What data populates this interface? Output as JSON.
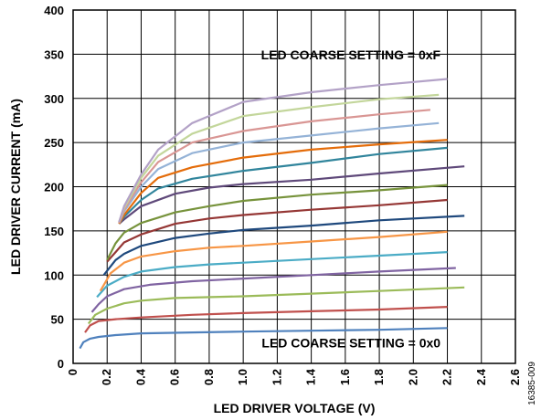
{
  "figure_id": "16385-009",
  "chart_data": {
    "type": "line",
    "title": "",
    "xlabel": "LED DRIVER VOLTAGE (V)",
    "ylabel": "LED DRIVER CURRENT (mA)",
    "xlim": [
      0,
      2.6
    ],
    "ylim": [
      0,
      400
    ],
    "xticks": [
      "0",
      "0.2",
      "0.4",
      "0.6",
      "0.8",
      "1.0",
      "1.2",
      "1.4",
      "1.6",
      "1.8",
      "2.0",
      "2.2",
      "2.4",
      "2.6"
    ],
    "yticks": [
      "0",
      "50",
      "100",
      "150",
      "200",
      "250",
      "300",
      "350",
      "400"
    ],
    "grid": true,
    "annotations": [
      {
        "text": "LED COARSE SETTING = 0xF",
        "x": 2.16,
        "y": 344
      },
      {
        "text": "LED COARSE SETTING = 0x0",
        "x": 2.16,
        "y": 18
      }
    ],
    "series": [
      {
        "color": "#4f81bd",
        "x": [
          0.04,
          0.06,
          0.1,
          0.15,
          0.25,
          0.4,
          0.7,
          1.0,
          1.4,
          1.8,
          2.2
        ],
        "y": [
          17,
          24,
          28,
          30,
          32,
          34,
          35,
          36,
          37,
          38,
          40
        ]
      },
      {
        "color": "#c0504d",
        "x": [
          0.07,
          0.1,
          0.15,
          0.25,
          0.4,
          0.7,
          1.0,
          1.4,
          1.8,
          2.2
        ],
        "y": [
          35,
          43,
          48,
          50,
          52,
          55,
          57,
          59,
          61,
          64
        ]
      },
      {
        "color": "#9bbb59",
        "x": [
          0.09,
          0.13,
          0.2,
          0.3,
          0.4,
          0.6,
          1.0,
          1.4,
          1.8,
          2.3
        ],
        "y": [
          45,
          55,
          62,
          68,
          71,
          74,
          76,
          79,
          82,
          86
        ]
      },
      {
        "color": "#8064a2",
        "x": [
          0.11,
          0.15,
          0.2,
          0.3,
          0.45,
          0.7,
          1.0,
          1.4,
          1.8,
          2.25
        ],
        "y": [
          58,
          67,
          76,
          84,
          89,
          93,
          96,
          100,
          104,
          108
        ]
      },
      {
        "color": "#4bacc6",
        "x": [
          0.14,
          0.2,
          0.3,
          0.4,
          0.6,
          0.8,
          1.0,
          1.4,
          1.8,
          2.2
        ],
        "y": [
          75,
          88,
          98,
          104,
          109,
          112,
          114,
          118,
          122,
          126
        ]
      },
      {
        "color": "#f79646",
        "x": [
          0.16,
          0.22,
          0.3,
          0.4,
          0.6,
          0.8,
          1.0,
          1.4,
          1.8,
          2.2
        ],
        "y": [
          82,
          102,
          114,
          121,
          127,
          131,
          133,
          138,
          143,
          149
        ]
      },
      {
        "color": "#1f497d",
        "x": [
          0.18,
          0.25,
          0.3,
          0.4,
          0.6,
          0.8,
          1.0,
          1.4,
          1.8,
          2.3
        ],
        "y": [
          100,
          117,
          124,
          133,
          142,
          147,
          151,
          156,
          162,
          167
        ]
      },
      {
        "color": "#953735",
        "x": [
          0.2,
          0.25,
          0.3,
          0.4,
          0.6,
          0.8,
          1.0,
          1.4,
          1.8,
          2.2
        ],
        "y": [
          115,
          126,
          137,
          146,
          158,
          164,
          168,
          174,
          179,
          185
        ]
      },
      {
        "color": "#77933c",
        "x": [
          0.2,
          0.25,
          0.3,
          0.4,
          0.6,
          0.8,
          1.0,
          1.4,
          1.8,
          2.2
        ],
        "y": [
          117,
          136,
          148,
          159,
          171,
          178,
          184,
          191,
          196,
          202
        ]
      },
      {
        "color": "#5f497a",
        "x": [
          0.27,
          0.3,
          0.4,
          0.6,
          0.8,
          1.0,
          1.4,
          1.8,
          2.3
        ],
        "y": [
          158,
          163,
          178,
          192,
          199,
          203,
          208,
          215,
          223
        ]
      },
      {
        "color": "#31859c",
        "x": [
          0.27,
          0.3,
          0.4,
          0.5,
          0.7,
          1.0,
          1.4,
          1.8,
          2.2
        ],
        "y": [
          158,
          166,
          185,
          198,
          209,
          218,
          227,
          237,
          244
        ]
      },
      {
        "color": "#e46c0a",
        "x": [
          0.27,
          0.3,
          0.4,
          0.5,
          0.7,
          1.0,
          1.4,
          1.8,
          2.2
        ],
        "y": [
          158,
          168,
          193,
          210,
          222,
          233,
          242,
          248,
          253
        ]
      },
      {
        "color": "#95b3d7",
        "x": [
          0.27,
          0.3,
          0.4,
          0.5,
          0.7,
          1.0,
          1.4,
          1.8,
          2.15
        ],
        "y": [
          159,
          172,
          200,
          220,
          238,
          250,
          258,
          266,
          272
        ]
      },
      {
        "color": "#d99694",
        "x": [
          0.27,
          0.3,
          0.4,
          0.5,
          0.7,
          1.0,
          1.4,
          1.8,
          2.1
        ],
        "y": [
          159,
          174,
          205,
          228,
          250,
          263,
          274,
          282,
          287
        ]
      },
      {
        "color": "#c3d69b",
        "x": [
          0.27,
          0.3,
          0.4,
          0.5,
          0.7,
          1.0,
          1.4,
          1.8,
          2.15
        ],
        "y": [
          160,
          176,
          210,
          235,
          260,
          280,
          290,
          299,
          304
        ]
      },
      {
        "color": "#b3a2c7",
        "x": [
          0.27,
          0.3,
          0.4,
          0.5,
          0.7,
          1.0,
          1.4,
          1.8,
          2.2
        ],
        "y": [
          160,
          178,
          214,
          242,
          272,
          296,
          307,
          315,
          322
        ]
      }
    ]
  }
}
